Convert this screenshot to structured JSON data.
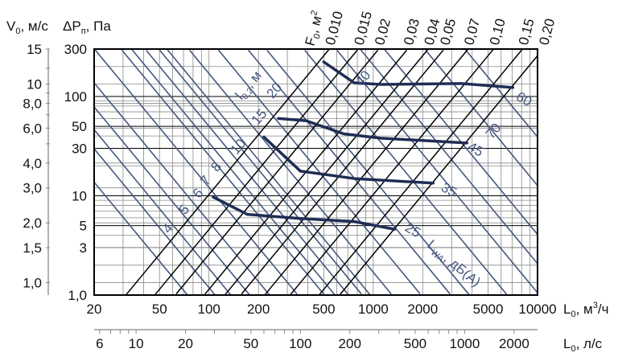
{
  "chart_data": {
    "type": "line",
    "title": "",
    "y_left_label": {
      "main": "V",
      "sub": "0",
      "rest": ", м/с"
    },
    "y_label": {
      "main": "ΔP",
      "sub": "п",
      "rest": ", Па"
    },
    "x_label": {
      "main": "L",
      "sub": "0",
      "rest": ", м",
      "sup": "3",
      "rest2": "/ч"
    },
    "x2_label": {
      "main": "L",
      "sub": "0",
      "rest": ", л/с"
    },
    "f_label": {
      "main": "F",
      "sub": "0",
      "rest": ", м",
      "sup": "2"
    },
    "l_label": {
      "main": "l",
      "sub": "0,2",
      "rest": ", м"
    },
    "noise_label": {
      "main": "L",
      "sub": "WA",
      "rest": ", дБ(А)"
    },
    "x_scale": "log",
    "y_scale": "log",
    "xlim": [
      20,
      10000
    ],
    "ylim": [
      1,
      300
    ],
    "x_ticks": [
      {
        "v": 20,
        "t": "20"
      },
      {
        "v": 50,
        "t": "50"
      },
      {
        "v": 100,
        "t": "100"
      },
      {
        "v": 200,
        "t": "200"
      },
      {
        "v": 500,
        "t": "500"
      },
      {
        "v": 1000,
        "t": "1000"
      },
      {
        "v": 2000,
        "t": "2000"
      },
      {
        "v": 5000,
        "t": "5000"
      },
      {
        "v": 10000,
        "t": "10000"
      }
    ],
    "y_ticks": [
      {
        "v": 300,
        "t": "300"
      },
      {
        "v": 100,
        "t": "100"
      },
      {
        "v": 50,
        "t": "50"
      },
      {
        "v": 30,
        "t": "30"
      },
      {
        "v": 10,
        "t": "10"
      },
      {
        "v": 5,
        "t": "5"
      },
      {
        "v": 3,
        "t": "3"
      },
      {
        "v": 1,
        "t": "1,0"
      }
    ],
    "v_ticks": [
      {
        "v": 15,
        "t": "15"
      },
      {
        "v": 10,
        "t": "10"
      },
      {
        "v": 8,
        "t": "8,0"
      },
      {
        "v": 6,
        "t": "6,0"
      },
      {
        "v": 4,
        "t": "4,0"
      },
      {
        "v": 3,
        "t": "3,0"
      },
      {
        "v": 2,
        "t": "2,0"
      },
      {
        "v": 1.5,
        "t": "1,5"
      },
      {
        "v": 1,
        "t": "1,0"
      }
    ],
    "x2_ticks": [
      {
        "v": 6,
        "t": "6"
      },
      {
        "v": 10,
        "t": "10"
      },
      {
        "v": 20,
        "t": "20"
      },
      {
        "v": 50,
        "t": "50"
      },
      {
        "v": 100,
        "t": "100"
      },
      {
        "v": 200,
        "t": "200"
      },
      {
        "v": 500,
        "t": "500"
      },
      {
        "v": 1000,
        "t": "1000"
      },
      {
        "v": 2000,
        "t": "2000"
      }
    ],
    "grid": true,
    "f0_lines": [
      {
        "F": 0.01,
        "t": "0,010"
      },
      {
        "F": 0.015,
        "t": "0,015"
      },
      {
        "F": 0.02,
        "t": "0,02"
      },
      {
        "F": 0.03,
        "t": "0,03"
      },
      {
        "F": 0.04,
        "t": "0,04"
      },
      {
        "F": 0.05,
        "t": "0,05"
      },
      {
        "F": 0.07,
        "t": "0,07"
      },
      {
        "F": 0.1,
        "t": "0,10"
      },
      {
        "F": 0.15,
        "t": "0,15"
      },
      {
        "F": 0.2,
        "t": "0,20"
      }
    ],
    "blue_lines_L_at_1Pa": [
      74,
      109,
      136,
      177,
      234,
      348,
      505,
      585,
      708,
      857,
      960,
      1303,
      1955,
      2970,
      3850,
      6540,
      10270,
      14400,
      20200,
      35600,
      62500
    ],
    "l_annotations": [
      {
        "t": "4",
        "L": 59,
        "P": 4.9
      },
      {
        "t": "5",
        "L": 74,
        "P": 7.6
      },
      {
        "t": "6",
        "L": 90,
        "P": 11.1
      },
      {
        "t": "7",
        "L": 100,
        "P": 14.9
      },
      {
        "t": "8",
        "L": 116,
        "P": 20.5
      },
      {
        "t": "10",
        "L": 158,
        "P": 32.7
      },
      {
        "t": "15",
        "L": 212,
        "P": 65
      },
      {
        "t": "20",
        "L": 262,
        "P": 120
      }
    ],
    "noise_annotations": [
      {
        "t": "25",
        "L": 1690,
        "P": 4.6
      },
      {
        "t": "35",
        "L": 2800,
        "P": 11.7
      },
      {
        "t": "40",
        "L": 908,
        "P": 159
      },
      {
        "t": "45",
        "L": 4070,
        "P": 30
      },
      {
        "t": "60",
        "L": 8020,
        "P": 96
      },
      {
        "t": "70",
        "L": 5650,
        "P": 47
      }
    ],
    "series": [
      {
        "points": [
          [
            499,
            223
          ],
          [
            766,
            137
          ],
          [
            1112,
            132
          ],
          [
            3436,
            135
          ],
          [
            7080,
            123
          ]
        ]
      },
      {
        "points": [
          [
            265,
            60
          ],
          [
            389,
            57
          ],
          [
            662,
            42
          ],
          [
            1112,
            38
          ],
          [
            3720,
            34
          ]
        ]
      },
      {
        "points": [
          [
            216,
            39
          ],
          [
            360,
            17.7
          ],
          [
            766,
            14.9
          ],
          [
            2317,
            13.4
          ]
        ]
      },
      {
        "points": [
          [
            106,
            9.7
          ],
          [
            171,
            6.5
          ],
          [
            360,
            5.9
          ],
          [
            766,
            5.5
          ],
          [
            1347,
            4.6
          ]
        ]
      }
    ],
    "colors": {
      "f_lines": "#000000",
      "blue_lines": "#44577f",
      "curves": "#1f2d55",
      "grid": "#8a8a8a"
    }
  }
}
